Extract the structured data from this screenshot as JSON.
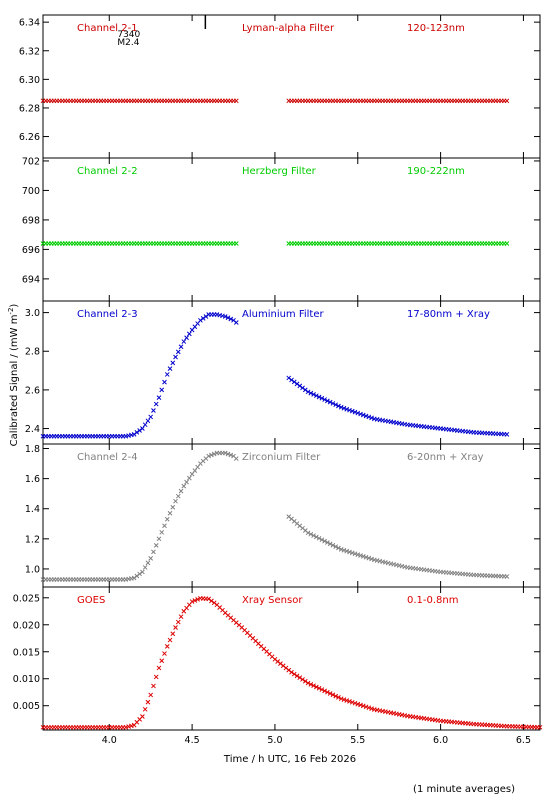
{
  "footer_note": "(1 minute averages)",
  "chart_data": {
    "type": "scatter",
    "layout": "stacked panels sharing x axis",
    "xlabel": "Time / h UTC, 16 Feb 2026",
    "ylabel": "Calibrated Signal  / (mW m",
    "ylabel_sup": "-2",
    "ylabel_end": ")",
    "xlim": [
      3.6,
      6.6
    ],
    "xticks": [
      4.0,
      4.5,
      5.0,
      5.5,
      6.0,
      6.5
    ],
    "xtick_labels": [
      "4.0",
      "4.5",
      "5.0",
      "5.5",
      "6.0",
      "6.5"
    ],
    "gap": [
      4.78,
      5.07
    ],
    "event_marker": {
      "x": 4.58,
      "label1": "7340",
      "label2": "M2.4"
    },
    "panels": [
      {
        "name": "Channel 2-1",
        "filter": "Lyman-alpha Filter",
        "band": "120-123nm",
        "color": "#cc0000",
        "ylim": [
          6.245,
          6.345
        ],
        "yticks": [
          6.26,
          6.28,
          6.3,
          6.32,
          6.34
        ],
        "ytick_labels": [
          "6.26",
          "6.28",
          "6.30",
          "6.32",
          "6.34"
        ],
        "x": [
          3.6,
          4.78,
          5.07,
          6.4
        ],
        "y": [
          6.285,
          6.285,
          6.285,
          6.285
        ]
      },
      {
        "name": "Channel 2-2",
        "filter": "Herzberg Filter",
        "band": "190-222nm",
        "color": "#00cc00",
        "ylim": [
          692.5,
          702.2
        ],
        "yticks": [
          694,
          696,
          698,
          700,
          702
        ],
        "ytick_labels": [
          "694",
          "696",
          "698",
          "700",
          "702"
        ],
        "x": [
          3.6,
          4.78,
          5.07,
          6.4
        ],
        "y": [
          696.4,
          696.4,
          696.4,
          696.4
        ]
      },
      {
        "name": "Channel 2-3",
        "filter": "Aluminium Filter",
        "band": "17-80nm + Xray",
        "color": "#0000cc",
        "ylim": [
          2.32,
          3.06
        ],
        "yticks": [
          2.4,
          2.6,
          2.8,
          3.0
        ],
        "ytick_labels": [
          "2.4",
          "2.6",
          "2.8",
          "3.0"
        ],
        "x": [
          3.6,
          4.1,
          4.15,
          4.2,
          4.25,
          4.3,
          4.35,
          4.4,
          4.45,
          4.5,
          4.55,
          4.6,
          4.65,
          4.7,
          4.75,
          4.78,
          5.07,
          5.2,
          5.4,
          5.6,
          5.8,
          6.0,
          6.2,
          6.4
        ],
        "y": [
          2.36,
          2.36,
          2.37,
          2.4,
          2.46,
          2.56,
          2.68,
          2.77,
          2.85,
          2.91,
          2.96,
          2.99,
          2.99,
          2.98,
          2.96,
          2.94,
          2.67,
          2.59,
          2.51,
          2.45,
          2.42,
          2.4,
          2.38,
          2.37
        ]
      },
      {
        "name": "Channel 2-4",
        "filter": "Zirconium Filter",
        "band": "6-20nm + Xray",
        "color": "#808080",
        "ylim": [
          0.88,
          1.83
        ],
        "yticks": [
          1.0,
          1.2,
          1.4,
          1.6,
          1.8
        ],
        "ytick_labels": [
          "1.0",
          "1.2",
          "1.4",
          "1.6",
          "1.8"
        ],
        "x": [
          3.6,
          4.1,
          4.15,
          4.2,
          4.25,
          4.3,
          4.35,
          4.4,
          4.45,
          4.5,
          4.55,
          4.6,
          4.65,
          4.7,
          4.75,
          4.78,
          5.07,
          5.2,
          5.4,
          5.6,
          5.8,
          6.0,
          6.2,
          6.4
        ],
        "y": [
          0.93,
          0.93,
          0.94,
          0.98,
          1.07,
          1.2,
          1.33,
          1.45,
          1.55,
          1.63,
          1.7,
          1.75,
          1.77,
          1.77,
          1.75,
          1.72,
          1.36,
          1.24,
          1.13,
          1.06,
          1.01,
          0.98,
          0.96,
          0.95
        ]
      },
      {
        "name": "GOES",
        "filter": "Xray Sensor",
        "band": "0.1-0.8nm",
        "color": "#dd0000",
        "ylim": [
          0.0005,
          0.027
        ],
        "yticks": [
          0.005,
          0.01,
          0.015,
          0.02,
          0.025
        ],
        "ytick_labels": [
          "0.005",
          "0.010",
          "0.015",
          "0.020",
          "0.025"
        ],
        "x": [
          3.6,
          4.1,
          4.15,
          4.2,
          4.25,
          4.3,
          4.35,
          4.4,
          4.45,
          4.5,
          4.55,
          4.6,
          4.65,
          4.7,
          4.8,
          4.9,
          5.0,
          5.1,
          5.2,
          5.4,
          5.6,
          5.8,
          6.0,
          6.2,
          6.4,
          6.6
        ],
        "y": [
          0.001,
          0.001,
          0.0014,
          0.003,
          0.007,
          0.012,
          0.016,
          0.0195,
          0.0225,
          0.0243,
          0.0249,
          0.0248,
          0.0237,
          0.0222,
          0.0195,
          0.0165,
          0.0136,
          0.0112,
          0.0092,
          0.0063,
          0.0043,
          0.0031,
          0.0022,
          0.0016,
          0.0012,
          0.001
        ]
      }
    ]
  }
}
